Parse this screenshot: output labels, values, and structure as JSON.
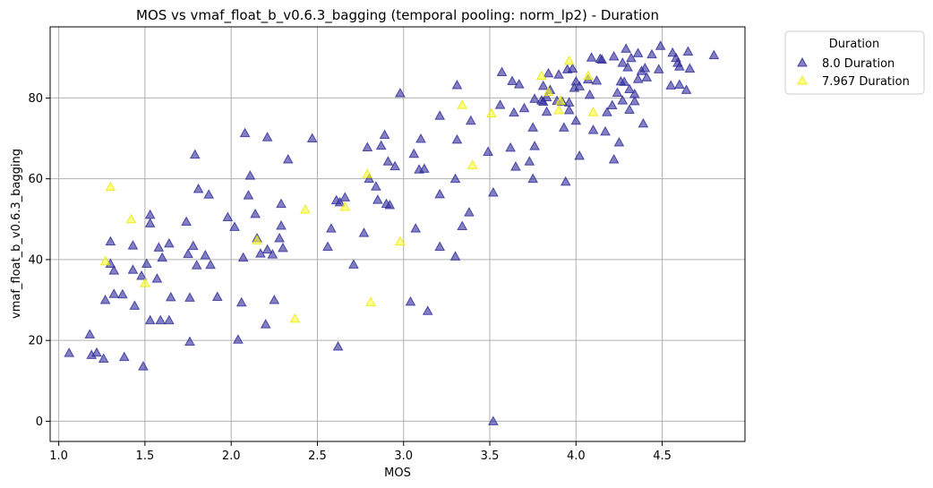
{
  "chart_data": {
    "type": "scatter",
    "title": "MOS vs vmaf_float_b_v0.6.3_bagging (temporal pooling: norm_lp2) - Duration",
    "xlabel": "MOS",
    "ylabel": "vmaf_float_b_v0.6.3_bagging",
    "xlim": [
      0.95,
      4.98
    ],
    "ylim": [
      -5,
      97.6
    ],
    "xticks": [
      "1.0",
      "1.5",
      "2.0",
      "2.5",
      "3.0",
      "3.5",
      "4.0",
      "4.5"
    ],
    "yticks": [
      "0",
      "20",
      "40",
      "60",
      "80"
    ],
    "grid": true,
    "marker": "triangle",
    "legend": {
      "title": "Duration",
      "placement": "outside-top-right"
    },
    "series": [
      {
        "name": "8.0 Duration",
        "color": "#2e2a99",
        "points": [
          [
            1.06,
            16.9
          ],
          [
            1.18,
            21.5
          ],
          [
            1.19,
            16.4
          ],
          [
            1.22,
            17.0
          ],
          [
            1.26,
            15.5
          ],
          [
            1.38,
            15.9
          ],
          [
            1.49,
            13.6
          ],
          [
            1.27,
            30.0
          ],
          [
            1.3,
            39.0
          ],
          [
            1.3,
            44.5
          ],
          [
            1.32,
            31.5
          ],
          [
            1.32,
            37.3
          ],
          [
            1.37,
            31.4
          ],
          [
            1.43,
            37.5
          ],
          [
            1.43,
            43.5
          ],
          [
            1.44,
            28.6
          ],
          [
            1.48,
            36.0
          ],
          [
            1.51,
            39.0
          ],
          [
            1.53,
            51.1
          ],
          [
            1.53,
            49.0
          ],
          [
            1.53,
            25.0
          ],
          [
            1.57,
            35.3
          ],
          [
            1.58,
            43.0
          ],
          [
            1.59,
            25.0
          ],
          [
            1.6,
            40.5
          ],
          [
            1.64,
            44.0
          ],
          [
            1.64,
            25.0
          ],
          [
            1.65,
            30.7
          ],
          [
            1.74,
            49.4
          ],
          [
            1.75,
            41.4
          ],
          [
            1.76,
            30.6
          ],
          [
            1.76,
            19.7
          ],
          [
            1.78,
            43.4
          ],
          [
            1.79,
            66.0
          ],
          [
            1.8,
            38.6
          ],
          [
            1.81,
            57.5
          ],
          [
            1.85,
            41.1
          ],
          [
            1.87,
            56.1
          ],
          [
            1.88,
            38.7
          ],
          [
            1.92,
            30.8
          ],
          [
            1.98,
            50.5
          ],
          [
            2.02,
            48.1
          ],
          [
            2.04,
            20.2
          ],
          [
            2.06,
            29.4
          ],
          [
            2.07,
            40.5
          ],
          [
            2.08,
            71.3
          ],
          [
            2.1,
            55.9
          ],
          [
            2.11,
            60.8
          ],
          [
            2.14,
            51.3
          ],
          [
            2.15,
            45.3
          ],
          [
            2.17,
            41.5
          ],
          [
            2.2,
            24.0
          ],
          [
            2.21,
            70.3
          ],
          [
            2.21,
            42.5
          ],
          [
            2.24,
            41.3
          ],
          [
            2.25,
            30.0
          ],
          [
            2.28,
            45.3
          ],
          [
            2.29,
            48.4
          ],
          [
            2.29,
            53.8
          ],
          [
            2.3,
            42.9
          ],
          [
            2.33,
            64.8
          ],
          [
            2.47,
            70.0
          ],
          [
            2.56,
            43.2
          ],
          [
            2.58,
            47.7
          ],
          [
            2.61,
            54.7
          ],
          [
            2.62,
            18.5
          ],
          [
            2.63,
            54.2
          ],
          [
            2.66,
            55.4
          ],
          [
            2.71,
            38.8
          ],
          [
            2.77,
            46.6
          ],
          [
            2.79,
            67.8
          ],
          [
            2.8,
            60.0
          ],
          [
            2.84,
            58.1
          ],
          [
            2.85,
            54.8
          ],
          [
            2.87,
            68.2
          ],
          [
            2.89,
            70.9
          ],
          [
            2.9,
            53.8
          ],
          [
            2.91,
            64.3
          ],
          [
            2.92,
            53.5
          ],
          [
            2.95,
            63.1
          ],
          [
            2.98,
            81.2
          ],
          [
            3.04,
            29.6
          ],
          [
            3.06,
            66.2
          ],
          [
            3.07,
            47.7
          ],
          [
            3.09,
            62.3
          ],
          [
            3.1,
            69.9
          ],
          [
            3.12,
            62.5
          ],
          [
            3.14,
            27.3
          ],
          [
            3.21,
            43.2
          ],
          [
            3.21,
            56.2
          ],
          [
            3.21,
            75.6
          ],
          [
            3.3,
            40.8
          ],
          [
            3.3,
            60.0
          ],
          [
            3.31,
            69.7
          ],
          [
            3.31,
            83.2
          ],
          [
            3.34,
            48.3
          ],
          [
            3.38,
            51.7
          ],
          [
            3.39,
            74.4
          ],
          [
            3.49,
            66.7
          ],
          [
            3.52,
            56.6
          ],
          [
            3.52,
            0.0
          ],
          [
            3.56,
            78.3
          ],
          [
            3.57,
            86.4
          ],
          [
            3.62,
            67.7
          ],
          [
            3.63,
            84.2
          ],
          [
            3.64,
            76.4
          ],
          [
            3.65,
            63.0
          ],
          [
            3.67,
            83.4
          ],
          [
            3.7,
            77.5
          ],
          [
            3.73,
            64.3
          ],
          [
            3.75,
            72.7
          ],
          [
            3.75,
            60.0
          ],
          [
            3.76,
            68.1
          ],
          [
            3.76,
            79.8
          ],
          [
            3.8,
            79.4
          ],
          [
            3.81,
            79.1
          ],
          [
            3.81,
            83.0
          ],
          [
            3.83,
            76.6
          ],
          [
            3.83,
            80.2
          ],
          [
            3.84,
            86.1
          ],
          [
            3.85,
            82.0
          ],
          [
            3.89,
            79.3
          ],
          [
            3.9,
            85.8
          ],
          [
            3.92,
            79.1
          ],
          [
            3.93,
            72.7
          ],
          [
            3.94,
            59.3
          ],
          [
            3.95,
            87.1
          ],
          [
            3.96,
            78.9
          ],
          [
            3.96,
            77.0
          ],
          [
            3.98,
            87.3
          ],
          [
            3.99,
            82.5
          ],
          [
            4.0,
            84.1
          ],
          [
            4.0,
            74.4
          ],
          [
            4.02,
            82.9
          ],
          [
            4.02,
            65.7
          ],
          [
            4.07,
            84.6
          ],
          [
            4.08,
            80.8
          ],
          [
            4.09,
            90.0
          ],
          [
            4.1,
            72.1
          ],
          [
            4.12,
            84.3
          ],
          [
            4.14,
            89.7
          ],
          [
            4.15,
            89.5
          ],
          [
            4.17,
            71.7
          ],
          [
            4.18,
            76.5
          ],
          [
            4.21,
            78.2
          ],
          [
            4.22,
            90.3
          ],
          [
            4.22,
            64.8
          ],
          [
            4.24,
            81.3
          ],
          [
            4.25,
            69.0
          ],
          [
            4.26,
            84.1
          ],
          [
            4.27,
            88.7
          ],
          [
            4.27,
            79.4
          ],
          [
            4.28,
            84.0
          ],
          [
            4.29,
            92.2
          ],
          [
            4.3,
            87.6
          ],
          [
            4.31,
            82.2
          ],
          [
            4.31,
            77.1
          ],
          [
            4.32,
            89.9
          ],
          [
            4.34,
            79.2
          ],
          [
            4.34,
            81.0
          ],
          [
            4.36,
            91.1
          ],
          [
            4.36,
            84.7
          ],
          [
            4.38,
            86.7
          ],
          [
            4.39,
            73.7
          ],
          [
            4.4,
            87.4
          ],
          [
            4.41,
            85.1
          ],
          [
            4.44,
            90.8
          ],
          [
            4.48,
            87.1
          ],
          [
            4.49,
            92.9
          ],
          [
            4.55,
            83.1
          ],
          [
            4.56,
            91.2
          ],
          [
            4.58,
            89.9
          ],
          [
            4.59,
            88.7
          ],
          [
            4.6,
            83.3
          ],
          [
            4.6,
            87.8
          ],
          [
            4.64,
            82.0
          ],
          [
            4.65,
            91.5
          ],
          [
            4.66,
            87.3
          ],
          [
            4.8,
            90.6
          ]
        ]
      },
      {
        "name": "7.967 Duration",
        "color": "#ffff33",
        "points": [
          [
            1.27,
            39.6
          ],
          [
            1.3,
            58.0
          ],
          [
            1.42,
            50.0
          ],
          [
            1.5,
            34.2
          ],
          [
            2.15,
            44.8
          ],
          [
            2.37,
            25.4
          ],
          [
            2.43,
            52.4
          ],
          [
            2.66,
            53.1
          ],
          [
            2.79,
            61.2
          ],
          [
            2.81,
            29.5
          ],
          [
            2.98,
            44.5
          ],
          [
            3.34,
            78.3
          ],
          [
            3.4,
            63.4
          ],
          [
            3.51,
            76.2
          ],
          [
            3.8,
            85.5
          ],
          [
            3.84,
            81.5
          ],
          [
            3.9,
            77.0
          ],
          [
            3.91,
            79.3
          ],
          [
            3.96,
            89.2
          ],
          [
            4.07,
            85.5
          ],
          [
            4.1,
            76.5
          ]
        ]
      }
    ]
  }
}
